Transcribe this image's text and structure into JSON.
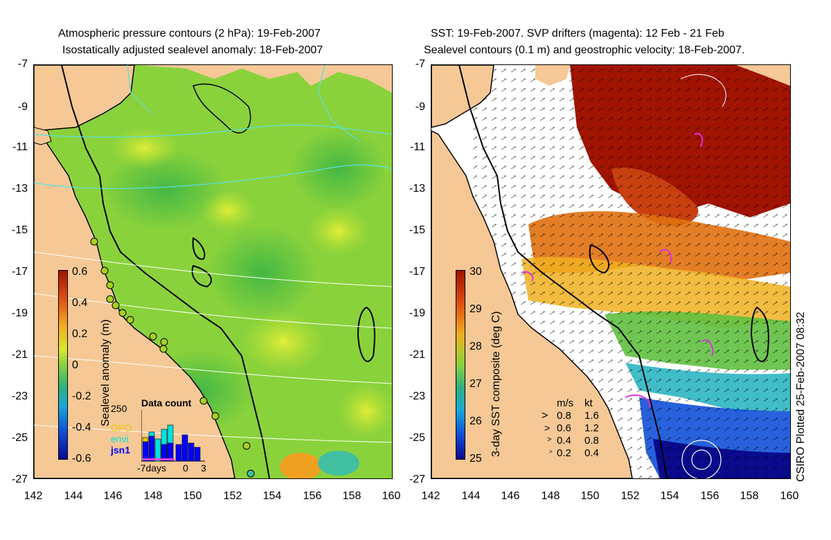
{
  "left_panel": {
    "title_line1": "Atmospheric pressure contours (2 hPa): 19-Feb-2007",
    "title_line2": "Isostatically adjusted sealevel anomaly: 18-Feb-2007",
    "colorbar_label": "Sealevel anomaly (m)",
    "colorbar_ticks": [
      "0.6",
      "0.4",
      "0.2",
      "0",
      "-0.2",
      "-0.4",
      "-0.6"
    ],
    "inset": {
      "title": "Data count",
      "ymax_label": "250",
      "legend": [
        {
          "label": "GFO",
          "color": "#e8c800"
        },
        {
          "label": "envi",
          "color": "#00e0e0"
        },
        {
          "label": "jsn1",
          "color": "#0000ff"
        }
      ],
      "xaxis_labels": [
        "-7days",
        "0",
        "3"
      ]
    }
  },
  "right_panel": {
    "title_line1": "SST: 19-Feb-2007. SVP drifters (magenta): 12 Feb - 21 Feb",
    "title_line2": "Sealevel contours (0.1 m) and geostrophic velocity: 18-Feb-2007.",
    "colorbar_label": "3-day SST composite (deg C)",
    "colorbar_ticks": [
      "30",
      "29",
      "28",
      "27",
      "26",
      "25"
    ],
    "velocity_legend": {
      "header_ms": "m/s",
      "header_kt": "kt",
      "rows": [
        {
          "ms": "0.8",
          "kt": "1.6"
        },
        {
          "ms": "0.6",
          "kt": "1.2"
        },
        {
          "ms": "0.4",
          "kt": "0.8"
        },
        {
          "ms": "0.2",
          "kt": "0.4"
        }
      ]
    },
    "credit": "CSIRO Plotted 25-Feb-2007 08:32"
  },
  "axes": {
    "y_ticks": [
      "-7",
      "-9",
      "-11",
      "-13",
      "-15",
      "-17",
      "-19",
      "-21",
      "-23",
      "-25",
      "-27"
    ],
    "x_ticks": [
      "142",
      "144",
      "146",
      "148",
      "150",
      "152",
      "154",
      "156",
      "158",
      "160"
    ]
  },
  "colors": {
    "land": "#f5c896",
    "ocean_left": "#86d23a",
    "coast": "#000000",
    "pressure_contour": "#58e0e0",
    "sst_hot": "#a01400",
    "drifter": "#e030e0"
  }
}
